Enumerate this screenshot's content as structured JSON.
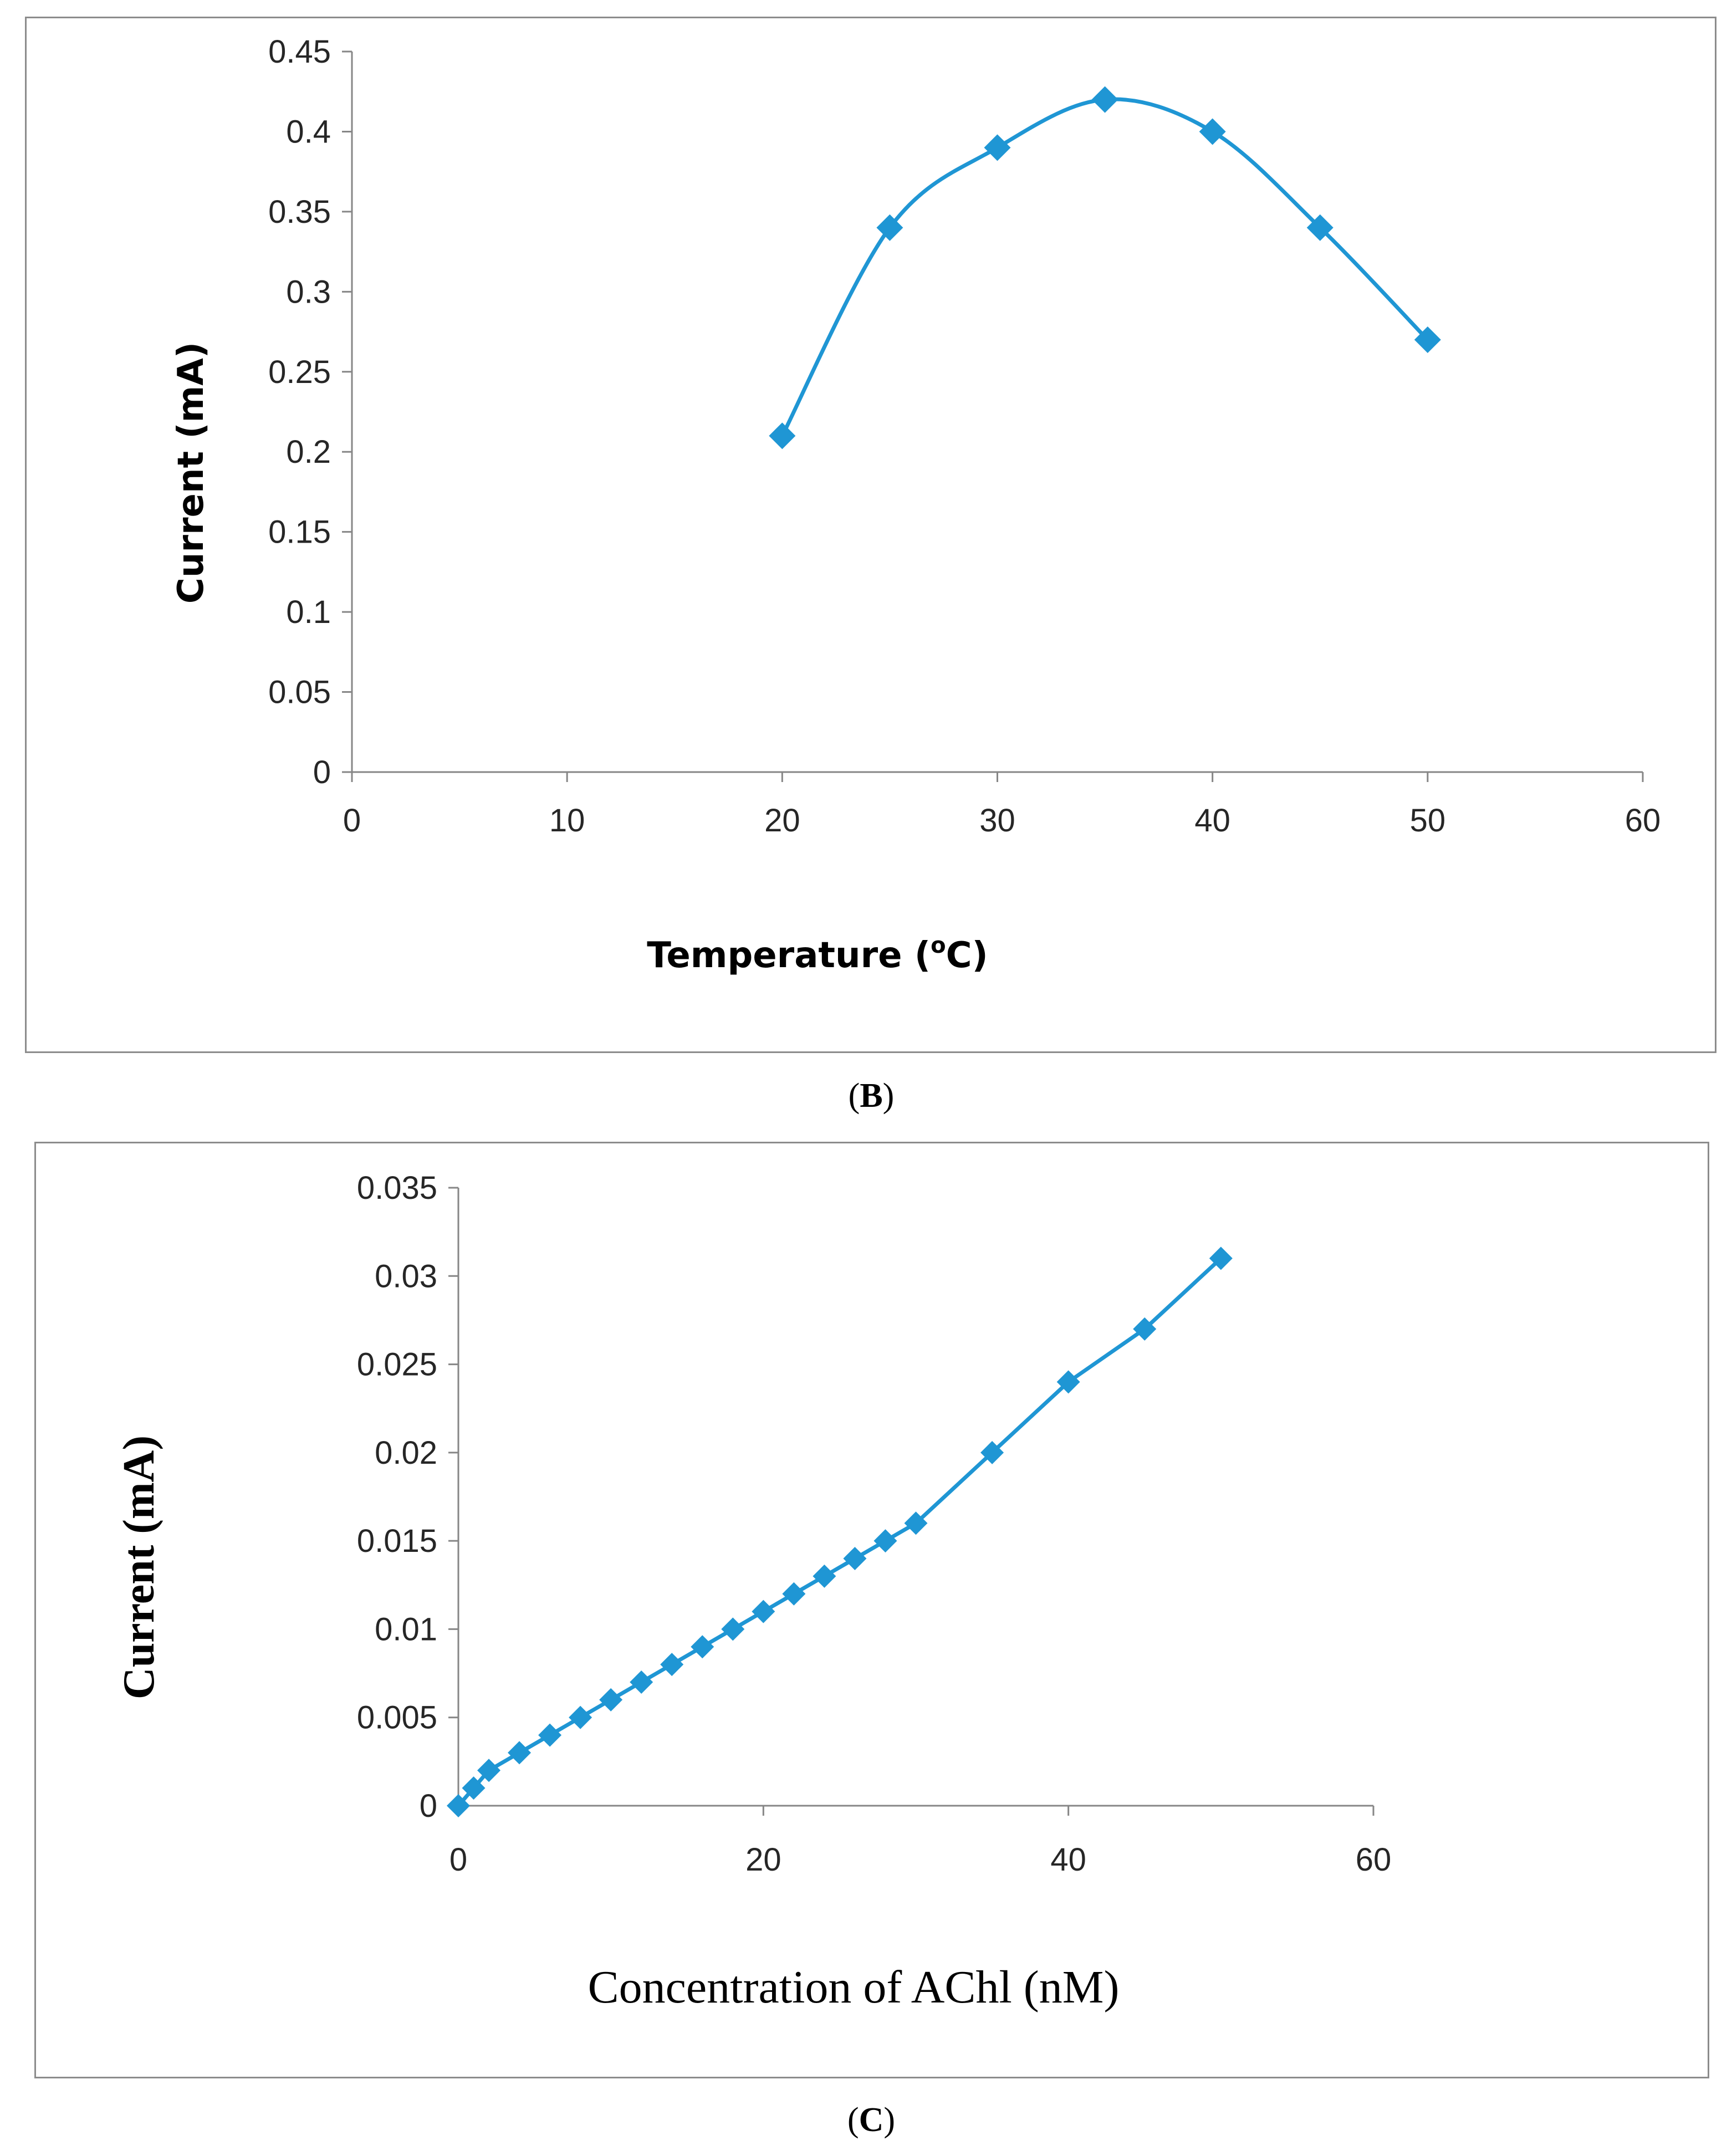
{
  "chart_data": [
    {
      "panel": "B",
      "type": "line",
      "smooth": true,
      "x": [
        20,
        25,
        30,
        35,
        40,
        45,
        50
      ],
      "series": [
        {
          "name": "Current",
          "values": [
            0.21,
            0.34,
            0.39,
            0.42,
            0.4,
            0.34,
            0.27
          ],
          "color": "#1f96d4",
          "marker": "diamond"
        }
      ],
      "xlabel": "Temperature (",
      "xlabel_sup": "o",
      "xlabel_suffix": "C)",
      "ylabel": "Current (mA)",
      "xlim": [
        0,
        60
      ],
      "ylim": [
        0,
        0.45
      ],
      "xticks": [
        "0",
        "10",
        "20",
        "30",
        "40",
        "50",
        "60"
      ],
      "yticks": [
        "0",
        "0.05",
        "0.1",
        "0.15",
        "0.2",
        "0.25",
        "0.3",
        "0.35",
        "0.4",
        "0.45"
      ],
      "grid": false,
      "caption": {
        "open": "(",
        "letter": "B",
        "close": ")"
      }
    },
    {
      "panel": "C",
      "type": "line",
      "smooth": false,
      "x": [
        0,
        1,
        2,
        4,
        6,
        8,
        10,
        12,
        14,
        16,
        18,
        20,
        22,
        24,
        26,
        28,
        30,
        35,
        40,
        45,
        50
      ],
      "series": [
        {
          "name": "Current",
          "values": [
            0,
            0.001,
            0.002,
            0.003,
            0.004,
            0.005,
            0.006,
            0.007,
            0.008,
            0.009,
            0.01,
            0.011,
            0.012,
            0.013,
            0.014,
            0.015,
            0.016,
            0.02,
            0.024,
            0.027,
            0.031
          ],
          "color": "#1f96d4",
          "marker": "diamond"
        }
      ],
      "xlabel": "Concentration of AChl (nM)",
      "ylabel": "Current (mA)",
      "xlim": [
        0,
        60
      ],
      "ylim": [
        0,
        0.035
      ],
      "xticks": [
        "0",
        "20",
        "40",
        "60"
      ],
      "yticks": [
        "0",
        "0.005",
        "0.01",
        "0.015",
        "0.02",
        "0.025",
        "0.03",
        "0.035"
      ],
      "grid": false,
      "caption": {
        "open": "(",
        "letter": "C",
        "close": ")"
      }
    }
  ]
}
